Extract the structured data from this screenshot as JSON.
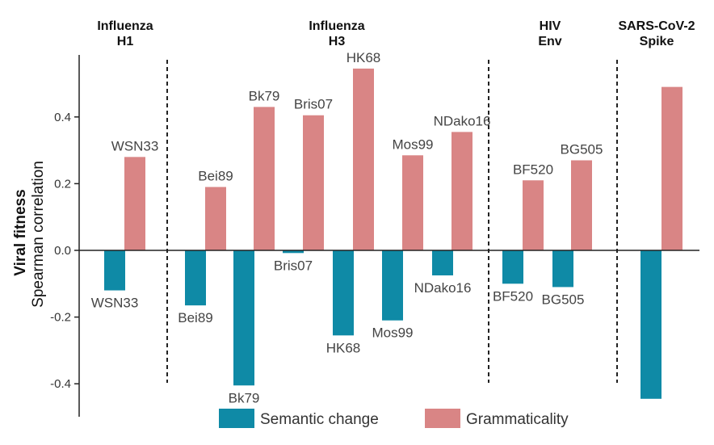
{
  "chart_data": {
    "type": "bar",
    "ylabel_bold": "Viral fitness",
    "ylabel": "Spearman correlation",
    "ylim": [
      -0.5,
      0.6
    ],
    "yticks": [
      {
        "value": 0.4,
        "label": "0.4"
      },
      {
        "value": 0.2,
        "label": "0.2"
      },
      {
        "value": 0.0,
        "label": "0.0"
      },
      {
        "value": -0.2,
        "label": "-0.2"
      },
      {
        "value": -0.4,
        "label": "-0.4"
      }
    ],
    "colors": {
      "semantic": "#0f8aa6",
      "grammar": "#d98585"
    },
    "legend": [
      {
        "key": "semantic",
        "label": "Semantic change"
      },
      {
        "key": "grammar",
        "label": "Grammaticality"
      }
    ],
    "groups": [
      {
        "title": [
          "Influenza",
          "H1"
        ]
      },
      {
        "title": [
          "Influenza",
          "H3"
        ]
      },
      {
        "title": [
          "HIV",
          "Env"
        ]
      },
      {
        "title": [
          "SARS-CoV-2",
          "Spike"
        ]
      }
    ],
    "strains": [
      {
        "group": 0,
        "semantic": -0.12,
        "grammar": 0.28,
        "semantic_label": "WSN33",
        "grammar_label": "WSN33"
      },
      {
        "group": 1,
        "semantic": -0.165,
        "grammar": 0.19,
        "semantic_label": "Bei89",
        "grammar_label": "Bei89"
      },
      {
        "group": 1,
        "semantic": -0.405,
        "grammar": 0.43,
        "semantic_label": "Bk79",
        "grammar_label": "Bk79"
      },
      {
        "group": 1,
        "semantic": -0.008,
        "grammar": 0.405,
        "semantic_label": "Bris07",
        "grammar_label": "Bris07"
      },
      {
        "group": 1,
        "semantic": -0.255,
        "grammar": 0.545,
        "semantic_label": "HK68",
        "grammar_label": "HK68"
      },
      {
        "group": 1,
        "semantic": -0.21,
        "grammar": 0.285,
        "semantic_label": "Mos99",
        "grammar_label": "Mos99"
      },
      {
        "group": 1,
        "semantic": -0.075,
        "grammar": 0.355,
        "semantic_label": "NDako16",
        "grammar_label": "NDako16"
      },
      {
        "group": 2,
        "semantic": -0.1,
        "grammar": 0.21,
        "semantic_label": "BF520",
        "grammar_label": "BF520"
      },
      {
        "group": 2,
        "semantic": -0.11,
        "grammar": 0.27,
        "semantic_label": "BG505",
        "grammar_label": "BG505"
      },
      {
        "group": 3,
        "semantic": -0.445,
        "grammar": 0.49,
        "semantic_label": "",
        "grammar_label": ""
      }
    ]
  }
}
